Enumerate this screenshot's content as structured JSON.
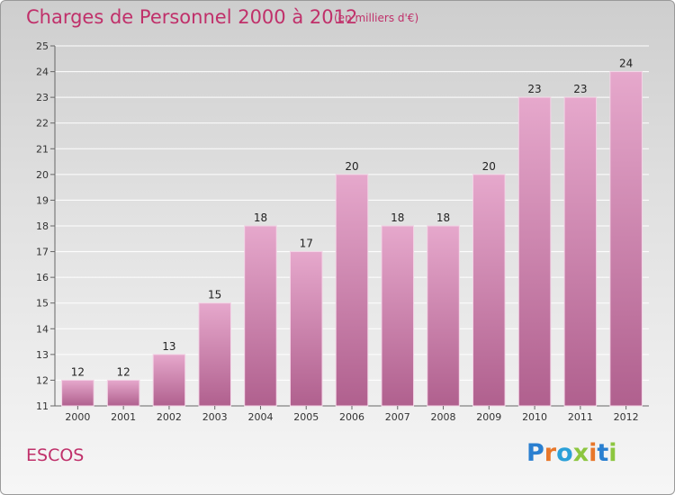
{
  "header": {
    "title": "Charges de Personnel 2000 à 2012",
    "unit": "(en milliers d'€)"
  },
  "footer": {
    "place": "ESCOS",
    "logo": {
      "text": "Proxiti",
      "letters": [
        {
          "ch": "P",
          "color": "#2a7fd0"
        },
        {
          "ch": "r",
          "color": "#e8772a"
        },
        {
          "ch": "o",
          "color": "#2aa0d8"
        },
        {
          "ch": "x",
          "color": "#8cc63f"
        },
        {
          "ch": "i",
          "color": "#e8772a"
        },
        {
          "ch": "t",
          "color": "#2a7fd0"
        },
        {
          "ch": "i",
          "color": "#8cc63f"
        }
      ]
    }
  },
  "colors": {
    "title": "#c0306a",
    "bar_top": "#e6a8cc",
    "bar_bottom": "#b0608e",
    "grid": "#ffffff",
    "axis": "#666666"
  },
  "chart_data": {
    "type": "bar",
    "categories": [
      "2000",
      "2001",
      "2002",
      "2003",
      "2004",
      "2005",
      "2006",
      "2007",
      "2008",
      "2009",
      "2010",
      "2011",
      "2012"
    ],
    "values": [
      12,
      12,
      13,
      15,
      18,
      17,
      20,
      18,
      18,
      20,
      23,
      23,
      24
    ],
    "title": "Charges de Personnel 2000 à 2012",
    "ylim": [
      11,
      25
    ],
    "yticks": [
      11,
      12,
      13,
      14,
      15,
      16,
      17,
      18,
      19,
      20,
      21,
      22,
      23,
      24,
      25
    ],
    "grid": true,
    "data_labels": true
  }
}
